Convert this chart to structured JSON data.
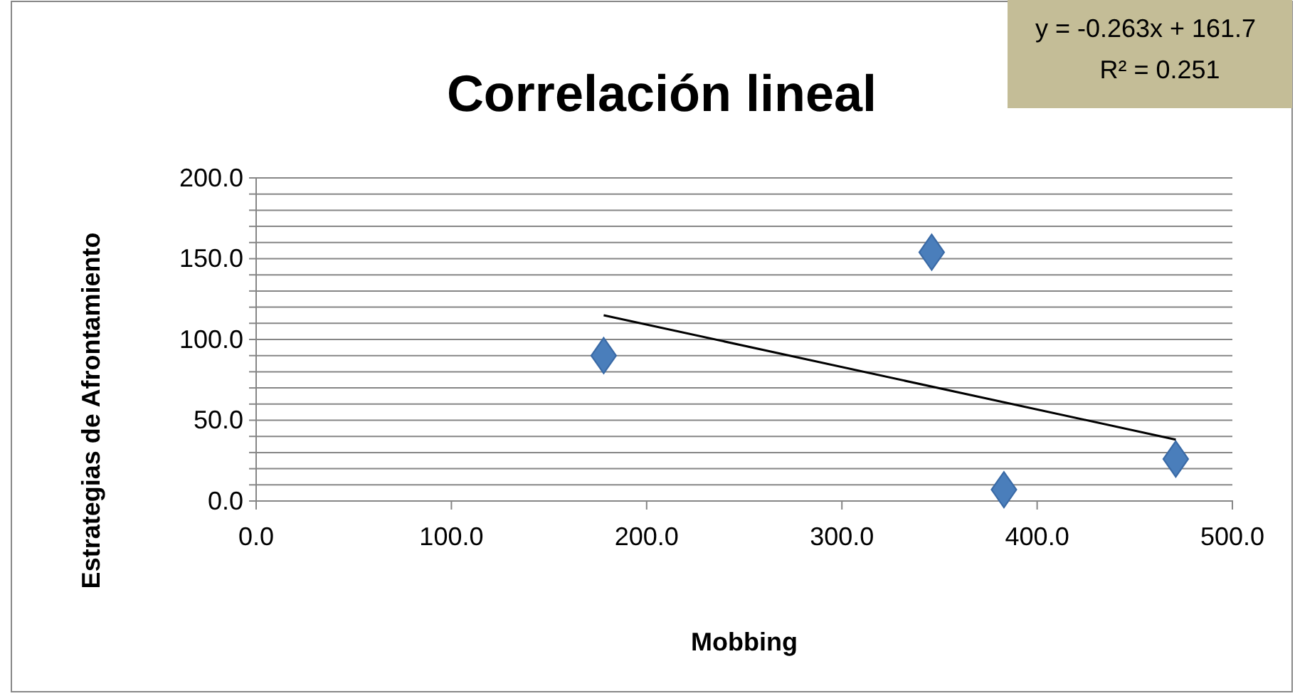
{
  "chart_data": {
    "type": "scatter",
    "title": "Correlación lineal",
    "xlabel": "Mobbing",
    "ylabel": "Estrategias de Afrontamiento",
    "annotations": [
      "y = -0.263x + 161.7",
      "R² = 0.251"
    ],
    "xlim": [
      0,
      500
    ],
    "xticks": [
      {
        "value": 0,
        "label": "0.0"
      },
      {
        "value": 100,
        "label": "100.0"
      },
      {
        "value": 200,
        "label": "200.0"
      },
      {
        "value": 300,
        "label": "300.0"
      },
      {
        "value": 400,
        "label": "400.0"
      },
      {
        "value": 500,
        "label": "500.0"
      }
    ],
    "ylim": [
      0,
      200
    ],
    "yticks": [
      {
        "value": 0,
        "label": "0.0"
      },
      {
        "value": 10,
        "label": null
      },
      {
        "value": 20,
        "label": null
      },
      {
        "value": 30,
        "label": null
      },
      {
        "value": 40,
        "label": null
      },
      {
        "value": 50,
        "label": "50.0"
      },
      {
        "value": 60,
        "label": null
      },
      {
        "value": 70,
        "label": null
      },
      {
        "value": 80,
        "label": null
      },
      {
        "value": 90,
        "label": null
      },
      {
        "value": 100,
        "label": "100.0"
      },
      {
        "value": 110,
        "label": null
      },
      {
        "value": 120,
        "label": null
      },
      {
        "value": 130,
        "label": null
      },
      {
        "value": 140,
        "label": null
      },
      {
        "value": 150,
        "label": "150.0"
      },
      {
        "value": 160,
        "label": null
      },
      {
        "value": 170,
        "label": null
      },
      {
        "value": 180,
        "label": null
      },
      {
        "value": 190,
        "label": null
      },
      {
        "value": 200,
        "label": "200.0"
      }
    ],
    "grid": "y",
    "marker": "diamond",
    "series": [
      {
        "color": "#4a7ebb",
        "x": [
          178,
          346,
          383,
          471
        ],
        "values": [
          90,
          154,
          7,
          26
        ]
      },
      {
        "type": "line",
        "color": "#000000",
        "marker": "none",
        "x": [
          178,
          471
        ],
        "values": [
          115,
          38
        ]
      }
    ]
  }
}
